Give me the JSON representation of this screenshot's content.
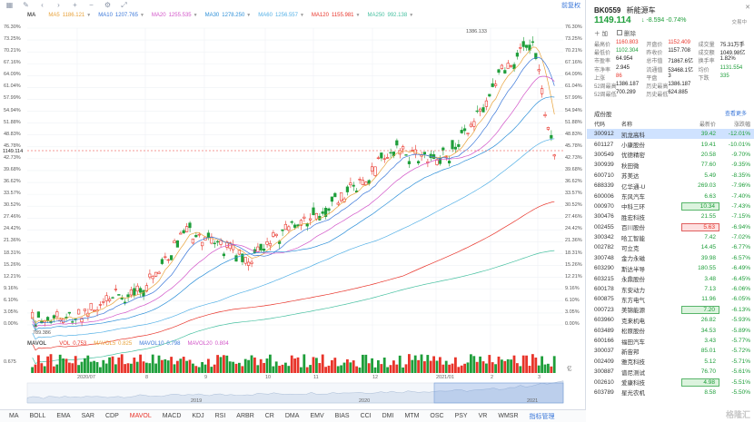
{
  "toolbar": {
    "right_link": "前复权"
  },
  "ma_legend": {
    "label": "MA",
    "items": [
      {
        "name": "MA5",
        "value": "1186.121",
        "color": "#e8a23a"
      },
      {
        "name": "MA10",
        "value": "1207.765",
        "color": "#3a77d9"
      },
      {
        "name": "MA20",
        "value": "1255.535",
        "color": "#d255c8"
      },
      {
        "name": "MA30",
        "value": "1278.250",
        "color": "#2c8fd8"
      },
      {
        "name": "MA60",
        "value": "1256.557",
        "color": "#53b0e6"
      },
      {
        "name": "MA120",
        "value": "1155.981",
        "color": "#e8342a"
      },
      {
        "name": "MA250",
        "value": "992.138",
        "color": "#46c0a0"
      }
    ]
  },
  "left_axis": [
    "76.30%",
    "73.25%",
    "70.21%",
    "67.16%",
    "64.09%",
    "61.04%",
    "57.99%",
    "54.94%",
    "51.88%",
    "48.83%",
    "45.78%",
    "42.73%",
    "39.68%",
    "36.62%",
    "33.57%",
    "30.52%",
    "27.46%",
    "24.42%",
    "21.36%",
    "18.31%",
    "15.26%",
    "12.21%",
    "9.16%",
    "6.10%",
    "3.05%",
    "0.00%"
  ],
  "right_axis": [
    "76.30%",
    "73.25%",
    "70.21%",
    "67.16%",
    "64.09%",
    "61.04%",
    "57.99%",
    "54.94%",
    "51.88%",
    "48.83%",
    "45.78%",
    "42.73%",
    "39.68%",
    "36.62%",
    "33.57%",
    "30.52%",
    "27.46%",
    "24.42%",
    "21.36%",
    "18.31%",
    "15.26%",
    "12.21%",
    "9.16%",
    "6.10%",
    "3.05%",
    "0.00%"
  ],
  "price_line_label": "1149.114",
  "high_label": "1386.133",
  "low_label": "789.386",
  "vol_legend": {
    "label": "MAVOL",
    "items": [
      {
        "name": "VOL",
        "value": "0.753",
        "color": "#e8342a"
      },
      {
        "name": "MAVOL5",
        "value": "0.825",
        "color": "#e8a23a"
      },
      {
        "name": "MAVOL10",
        "value": "0.798",
        "color": "#3a77d9"
      },
      {
        "name": "MAVOL20",
        "value": "0.804",
        "color": "#d255c8"
      }
    ],
    "axis_top": "0.675",
    "axis_unit": "亿"
  },
  "x_axis": [
    "2020/07",
    "8",
    "9",
    "10",
    "11",
    "12",
    "2021/01",
    "2",
    "3"
  ],
  "nav_axis": [
    "2019",
    "2020",
    "2021"
  ],
  "bottom_tabs": [
    "MA",
    "BOLL",
    "EMA",
    "SAR",
    "CDP",
    "MAVOL",
    "MACD",
    "KDJ",
    "RSI",
    "ARBR",
    "CR",
    "DMA",
    "EMV",
    "BIAS",
    "CCI",
    "DMI",
    "MTM",
    "OSC",
    "PSY",
    "VR",
    "WMSR",
    "指标管理"
  ],
  "bottom_tabs_active": "MAVOL",
  "quote": {
    "code": "BK0559",
    "name": "新能源车",
    "close_label": "交易中",
    "price": "1149.114",
    "arrow": "↓",
    "change": "-8.594",
    "change_pct": "-0.74%",
    "actions": [
      "加",
      "删除"
    ],
    "stats": [
      [
        [
          "最高价",
          "1160.803",
          "up"
        ],
        [
          "开盘价",
          "1152.409",
          "up"
        ],
        [
          "成交量",
          "75.31万手",
          ""
        ]
      ],
      [
        [
          "最低价",
          "1102.304",
          "dn"
        ],
        [
          "昨收价",
          "1157.708",
          ""
        ],
        [
          "成交额",
          "1049.98亿",
          ""
        ]
      ],
      [
        [
          "市盈率",
          "64.954",
          ""
        ],
        [
          "总市值",
          "71867.6亿",
          ""
        ],
        [
          "换手率",
          "1.82%",
          ""
        ]
      ],
      [
        [
          "市净率",
          "2.945",
          ""
        ],
        [
          "流通值",
          "53468.1亿",
          ""
        ],
        [
          "均价",
          "1131.554",
          "dn"
        ]
      ],
      [
        [
          "上涨",
          "86",
          "up"
        ],
        [
          "平盘",
          "3",
          ""
        ],
        [
          "下跌",
          "335",
          "dn"
        ]
      ],
      [
        [
          "52周最高",
          "1386.187",
          ""
        ],
        [
          "历史最高",
          "1386.187",
          ""
        ],
        [
          "",
          ""
        ]
      ],
      [
        [
          "52周最低",
          "700.289",
          ""
        ],
        [
          "历史最低",
          "624.885",
          ""
        ],
        [
          "",
          ""
        ]
      ]
    ]
  },
  "constituents": {
    "tab": "成份股",
    "more": "查看更多",
    "headers": [
      "代码",
      "名称",
      "最新价",
      "涨跌幅"
    ],
    "rows": [
      {
        "code": "300912",
        "name": "凯龙高科",
        "price": "39.42",
        "pct": "-12.01%",
        "sel": true
      },
      {
        "code": "601127",
        "name": "小康股份",
        "price": "19.41",
        "pct": "-10.01%"
      },
      {
        "code": "300549",
        "name": "优德精密",
        "price": "20.58",
        "pct": "-9.70%"
      },
      {
        "code": "300939",
        "name": "秋田微",
        "price": "77.60",
        "pct": "-9.35%"
      },
      {
        "code": "600710",
        "name": "苏美达",
        "price": "5.49",
        "pct": "-8.35%"
      },
      {
        "code": "688339",
        "name": "亿华通-U",
        "price": "269.03",
        "pct": "-7.96%"
      },
      {
        "code": "600006",
        "name": "东风汽车",
        "price": "6.63",
        "pct": "-7.40%"
      },
      {
        "code": "000970",
        "name": "中科三环",
        "price": "10.34",
        "pct": "-7.43%",
        "hl": "green"
      },
      {
        "code": "300476",
        "name": "胜宏科技",
        "price": "21.55",
        "pct": "-7.15%"
      },
      {
        "code": "002455",
        "name": "百川股份",
        "price": "5.63",
        "pct": "-6.94%",
        "hl": "red"
      },
      {
        "code": "300342",
        "name": "哈工智能",
        "price": "7.42",
        "pct": "-7.02%"
      },
      {
        "code": "002782",
        "name": "可立克",
        "price": "14.45",
        "pct": "-6.77%"
      },
      {
        "code": "300748",
        "name": "金力永磁",
        "price": "39.98",
        "pct": "-6.57%"
      },
      {
        "code": "603290",
        "name": "斯达半导",
        "price": "180.55",
        "pct": "-6.49%"
      },
      {
        "code": "603215",
        "name": "永鼎股份",
        "price": "3.48",
        "pct": "-6.45%"
      },
      {
        "code": "600178",
        "name": "东安动力",
        "price": "7.13",
        "pct": "-6.06%"
      },
      {
        "code": "600875",
        "name": "东方电气",
        "price": "11.96",
        "pct": "-6.05%"
      },
      {
        "code": "000723",
        "name": "美锦能源",
        "price": "7.20",
        "pct": "-6.13%",
        "hl": "green"
      },
      {
        "code": "603960",
        "name": "克来机电",
        "price": "26.82",
        "pct": "-5.93%"
      },
      {
        "code": "603489",
        "name": "松原股份",
        "price": "34.53",
        "pct": "-5.89%"
      },
      {
        "code": "600166",
        "name": "福田汽车",
        "price": "3.43",
        "pct": "-5.77%"
      },
      {
        "code": "300037",
        "name": "新宙邦",
        "price": "85.01",
        "pct": "-5.72%"
      },
      {
        "code": "002409",
        "name": "雅克科技",
        "price": "5.12",
        "pct": "-5.71%"
      },
      {
        "code": "300887",
        "name": "谱尼测试",
        "price": "76.70",
        "pct": "-5.61%"
      },
      {
        "code": "002610",
        "name": "爱康科技",
        "price": "4.98",
        "pct": "-5.51%",
        "hl": "green"
      },
      {
        "code": "603789",
        "name": "星光农机",
        "price": "8.58",
        "pct": "-5.50%"
      }
    ]
  },
  "watermark": "格隆汇"
}
